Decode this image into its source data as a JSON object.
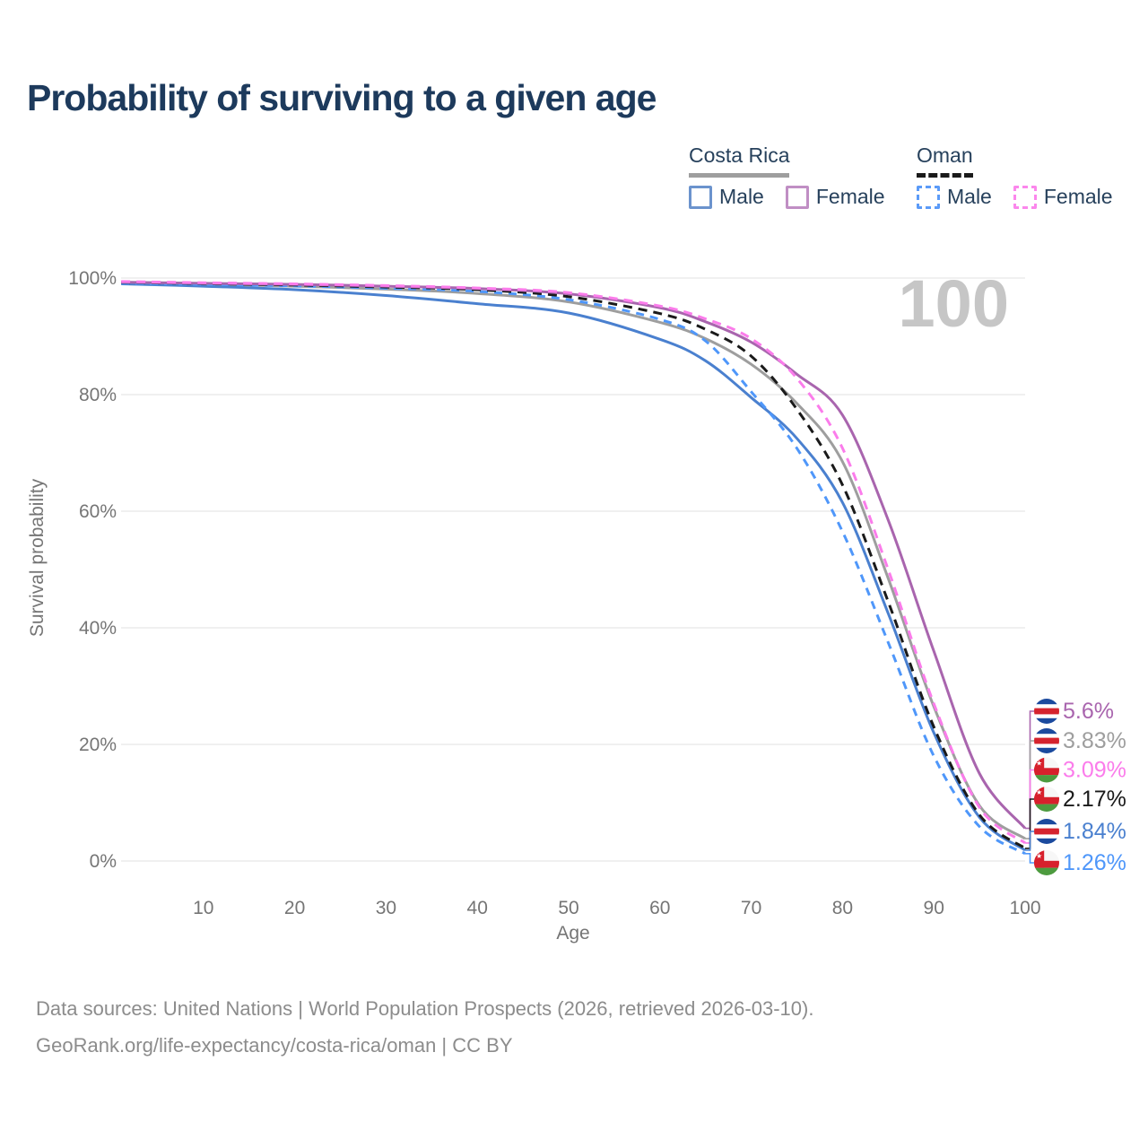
{
  "title": "Probability of surviving to a given age",
  "watermark_label": "100",
  "legend": {
    "groups": [
      {
        "country": "Costa Rica",
        "line_style": "solid",
        "underline_color": "#9e9e9e",
        "items": [
          {
            "label": "Male",
            "color": "#6b93cd",
            "box_style": "solid"
          },
          {
            "label": "Female",
            "color": "#c08ec4",
            "box_style": "solid"
          }
        ]
      },
      {
        "country": "Oman",
        "line_style": "dashed",
        "underline_color": "#1a1a1a",
        "items": [
          {
            "label": "Male",
            "color": "#5b9bf8",
            "box_style": "dashed"
          },
          {
            "label": "Female",
            "color": "#fb87ec",
            "box_style": "dashed"
          }
        ]
      }
    ]
  },
  "chart_data": {
    "type": "line",
    "title": "Probability of surviving to a given age",
    "xlabel": "Age",
    "ylabel": "Survival probability",
    "xlim": [
      0,
      100
    ],
    "ylim": [
      0,
      100
    ],
    "grid": "horizontal",
    "legend_position": "top-right",
    "x_ticks": [
      10,
      20,
      30,
      40,
      50,
      60,
      70,
      80,
      90,
      100
    ],
    "y_ticks": [
      0,
      20,
      40,
      60,
      80,
      100
    ],
    "y_tick_labels": [
      "0%",
      "20%",
      "40%",
      "60%",
      "80%",
      "100%"
    ],
    "ages": [
      1,
      10,
      20,
      30,
      40,
      50,
      60,
      65,
      70,
      75,
      80,
      85,
      90,
      95,
      100
    ],
    "series": [
      {
        "id": "costa-rica-both",
        "name": "Costa Rica",
        "country": "Costa Rica",
        "sex": "Both",
        "color": "#9e9e9e",
        "dash": null,
        "end_label": "3.83%",
        "end_value": 3.83,
        "flag": "costa-rica",
        "values": [
          99.2,
          98.95,
          98.6,
          98.1,
          97.35,
          95.9,
          92.4,
          89.6,
          85.2,
          78.5,
          68.5,
          48.5,
          26.5,
          9.5,
          3.83
        ]
      },
      {
        "id": "costa-rica-male",
        "name": "Costa Rica Male",
        "country": "Costa Rica",
        "sex": "Male",
        "color": "#4a80cf",
        "dash": null,
        "end_label": "1.84%",
        "end_value": 1.84,
        "flag": "costa-rica",
        "values": [
          99.0,
          98.6,
          98.0,
          97.0,
          95.6,
          94.0,
          89.5,
          85.8,
          79.5,
          72.5,
          61.5,
          42.5,
          22.0,
          7.5,
          1.84
        ]
      },
      {
        "id": "oman-male",
        "name": "Oman Male",
        "country": "Oman",
        "sex": "Male",
        "color": "#4f97fa",
        "dash": [
          9,
          7
        ],
        "end_label": "1.26%",
        "end_value": 1.26,
        "flag": "oman",
        "values": [
          99.1,
          98.9,
          98.65,
          98.25,
          97.7,
          96.3,
          92.9,
          89.2,
          80.5,
          70.8,
          56.5,
          37.5,
          18.0,
          5.9,
          1.26
        ]
      },
      {
        "id": "oman-both",
        "name": "Oman",
        "country": "Oman",
        "sex": "Both",
        "color": "#1a1a1a",
        "dash": [
          10,
          7
        ],
        "end_label": "2.17%",
        "end_value": 2.17,
        "flag": "oman",
        "values": [
          99.25,
          99.05,
          98.8,
          98.45,
          98.0,
          96.8,
          93.9,
          91.2,
          86.6,
          77.5,
          64.5,
          44.5,
          23.0,
          7.9,
          2.17
        ]
      },
      {
        "id": "costa-rica-female",
        "name": "Costa Rica Female",
        "country": "Costa Rica",
        "sex": "Female",
        "color": "#a965ae",
        "dash": null,
        "end_label": "5.6%",
        "end_value": 5.6,
        "flag": "costa-rica",
        "values": [
          99.3,
          99.1,
          98.9,
          98.6,
          98.2,
          97.3,
          94.9,
          92.5,
          89.0,
          83.5,
          76.5,
          58.5,
          36.0,
          15.0,
          5.6
        ]
      },
      {
        "id": "oman-female",
        "name": "Oman Female",
        "country": "Oman",
        "sex": "Female",
        "color": "#fb7ceb",
        "dash": [
          10,
          7
        ],
        "end_label": "3.09%",
        "end_value": 3.09,
        "flag": "oman",
        "values": [
          99.4,
          99.2,
          99.0,
          98.7,
          98.3,
          97.5,
          95.2,
          93.0,
          89.6,
          82.8,
          70.8,
          50.0,
          27.0,
          9.2,
          3.09
        ]
      }
    ],
    "flag_colors": {
      "costa-rica": {
        "blue": "#1b4a9e",
        "red": "#d5232e",
        "white": "#ffffff"
      },
      "oman": {
        "red": "#d7202c",
        "green": "#4d9b3f",
        "white": "#f7f7f7"
      }
    }
  },
  "footer": {
    "line1": "Data sources: United Nations | World Population Prospects (2026, retrieved 2026-03-10).",
    "line2": "GeoRank.org/life-expectancy/costa-rica/oman | CC BY"
  }
}
